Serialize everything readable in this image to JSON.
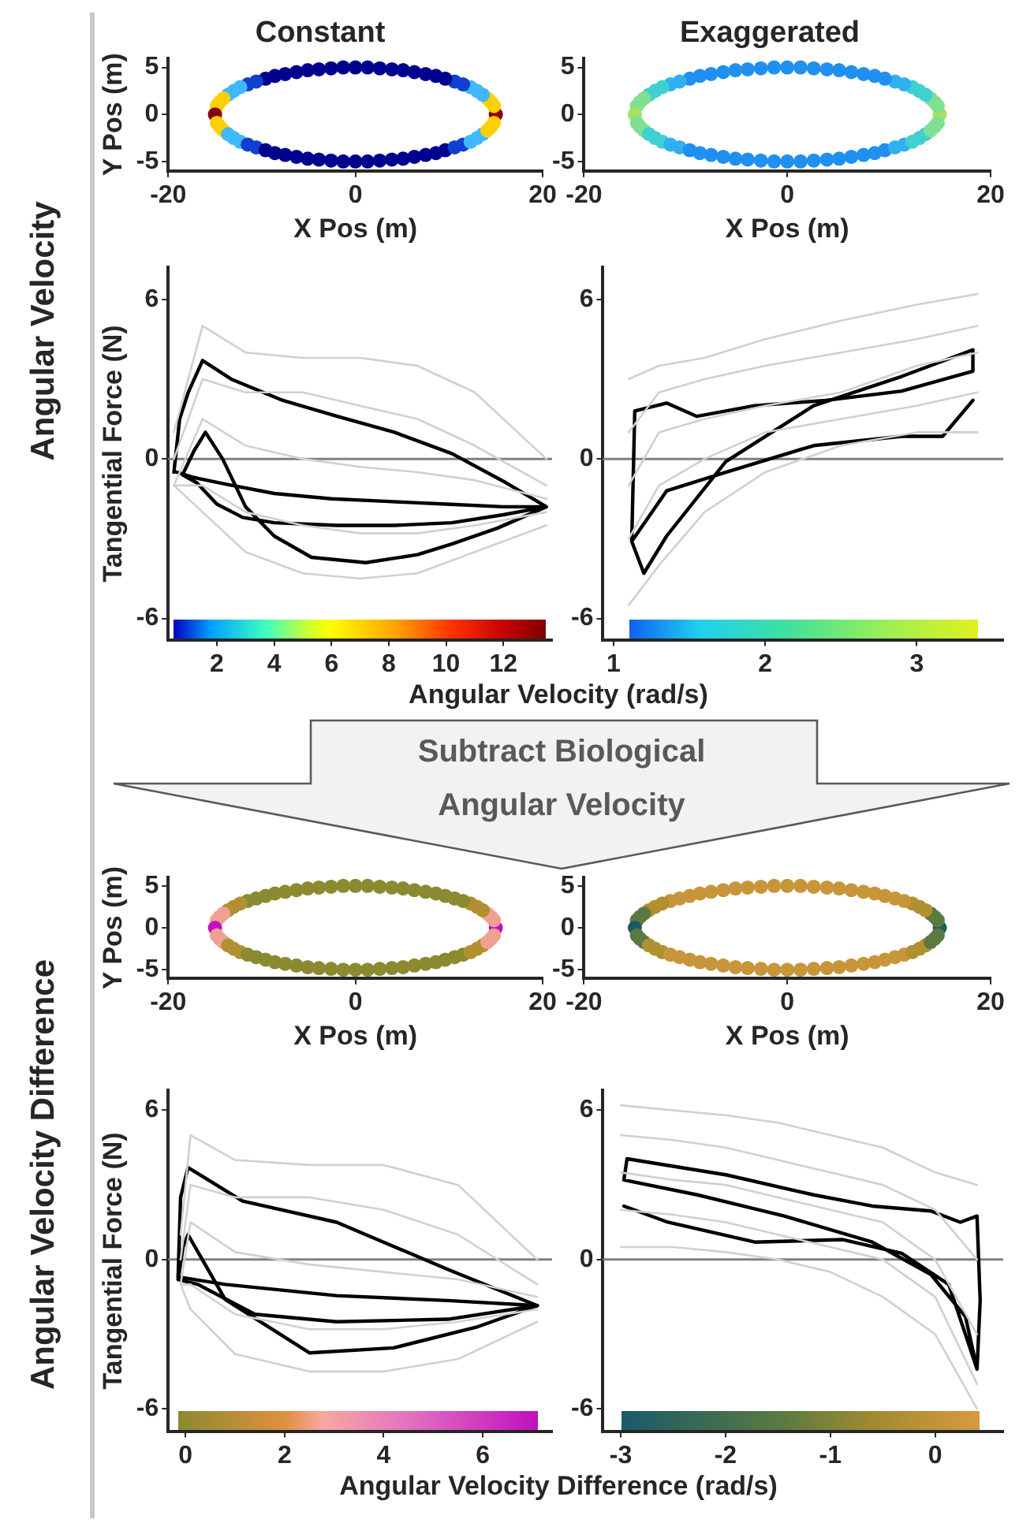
{
  "chart_data": [
    {
      "type": "scatter",
      "marker": "circle",
      "title": "Constant",
      "xlabel": "X Pos (m)",
      "ylabel": "Y Pos (m)",
      "annotations": [
        "Angular Velocity"
      ],
      "xlim": [
        -20,
        20
      ],
      "xticks": [
        -20,
        0,
        20
      ],
      "ylim": [
        -6,
        6
      ],
      "yticks": [
        -5,
        0,
        5
      ],
      "x": [
        15.0,
        14.8,
        14.5,
        14.1,
        13.6,
        13.0,
        12.3,
        11.5,
        10.6,
        9.6,
        8.6,
        7.5,
        6.3,
        5.1,
        3.9,
        2.6,
        1.3,
        0.0,
        -1.3,
        -2.6,
        -3.9,
        -5.1,
        -6.3,
        -7.5,
        -8.6,
        -9.6,
        -10.6,
        -11.5,
        -12.3,
        -13.0,
        -13.6,
        -14.1,
        -14.5,
        -14.8,
        -15.0,
        -14.8,
        -14.5,
        -14.1,
        -13.6,
        -13.0,
        -12.3,
        -11.5,
        -10.6,
        -9.6,
        -8.6,
        -7.5,
        -6.3,
        -5.1,
        -3.9,
        -2.6,
        -1.3,
        0.0,
        1.3,
        2.6,
        3.9,
        5.1,
        6.3,
        7.5,
        8.6,
        9.6,
        10.6,
        11.5,
        12.3,
        13.0,
        13.6,
        14.1,
        14.5,
        14.8
      ],
      "values": [
        0.0,
        0.9,
        1.3,
        1.7,
        2.1,
        2.5,
        2.9,
        3.2,
        3.5,
        3.8,
        4.1,
        4.3,
        4.5,
        4.7,
        4.8,
        4.9,
        5.0,
        5.0,
        5.0,
        4.9,
        4.8,
        4.7,
        4.5,
        4.3,
        4.1,
        3.8,
        3.5,
        3.2,
        2.9,
        2.5,
        2.1,
        1.7,
        1.3,
        0.9,
        0.0,
        -0.9,
        -1.3,
        -1.7,
        -2.1,
        -2.5,
        -2.9,
        -3.2,
        -3.5,
        -3.8,
        -4.1,
        -4.3,
        -4.5,
        -4.7,
        -4.8,
        -4.9,
        -5.0,
        -5.0,
        -5.0,
        -4.9,
        -4.8,
        -4.7,
        -4.5,
        -4.3,
        -4.1,
        -3.8,
        -3.5,
        -3.2,
        -2.9,
        -2.5,
        -2.1,
        -1.7,
        -1.3,
        -0.9
      ],
      "colors": [
        "#8b0000",
        "#ffd000",
        "#ffd000",
        "#ffd000",
        "#40b8ff",
        "#40b8ff",
        "#40b8ff",
        "#1040d0",
        "#1040d0",
        "#00008f",
        "#00008f",
        "#00008f",
        "#00008f",
        "#00008f",
        "#00008f",
        "#00008f",
        "#00008f",
        "#00008f",
        "#00008f",
        "#00008f",
        "#00008f",
        "#00008f",
        "#00008f",
        "#00008f",
        "#00008f",
        "#00008f",
        "#1040d0",
        "#1040d0",
        "#40b8ff",
        "#40b8ff",
        "#40b8ff",
        "#ffd000",
        "#ffd000",
        "#ffd000",
        "#8b0000",
        "#ffd000",
        "#ffd000",
        "#ffd000",
        "#40b8ff",
        "#40b8ff",
        "#40b8ff",
        "#1040d0",
        "#1040d0",
        "#00008f",
        "#00008f",
        "#00008f",
        "#00008f",
        "#00008f",
        "#00008f",
        "#00008f",
        "#00008f",
        "#00008f",
        "#00008f",
        "#00008f",
        "#00008f",
        "#00008f",
        "#00008f",
        "#00008f",
        "#00008f",
        "#00008f",
        "#1040d0",
        "#1040d0",
        "#40b8ff",
        "#40b8ff",
        "#40b8ff",
        "#ffd000",
        "#ffd000",
        "#ffd000"
      ]
    },
    {
      "type": "scatter",
      "marker": "circle",
      "title": "Exaggerated",
      "xlabel": "X Pos (m)",
      "xlim": [
        -20,
        20
      ],
      "xticks": [
        -20,
        0,
        20
      ],
      "ylim": [
        -6,
        6
      ],
      "yticks": [
        -5,
        0,
        5
      ],
      "x": [
        15.0,
        14.8,
        14.5,
        14.1,
        13.6,
        13.0,
        12.3,
        11.5,
        10.6,
        9.6,
        8.6,
        7.5,
        6.3,
        5.1,
        3.9,
        2.6,
        1.3,
        0.0,
        -1.3,
        -2.6,
        -3.9,
        -5.1,
        -6.3,
        -7.5,
        -8.6,
        -9.6,
        -10.6,
        -11.5,
        -12.3,
        -13.0,
        -13.6,
        -14.1,
        -14.5,
        -14.8,
        -15.0,
        -14.8,
        -14.5,
        -14.1,
        -13.6,
        -13.0,
        -12.3,
        -11.5,
        -10.6,
        -9.6,
        -8.6,
        -7.5,
        -6.3,
        -5.1,
        -3.9,
        -2.6,
        -1.3,
        0.0,
        1.3,
        2.6,
        3.9,
        5.1,
        6.3,
        7.5,
        8.6,
        9.6,
        10.6,
        11.5,
        12.3,
        13.0,
        13.6,
        14.1,
        14.5,
        14.8
      ],
      "values": [
        0.0,
        0.9,
        1.3,
        1.7,
        2.1,
        2.5,
        2.9,
        3.2,
        3.5,
        3.8,
        4.1,
        4.3,
        4.5,
        4.7,
        4.8,
        4.9,
        5.0,
        5.0,
        5.0,
        4.9,
        4.8,
        4.7,
        4.5,
        4.3,
        4.1,
        3.8,
        3.5,
        3.2,
        2.9,
        2.5,
        2.1,
        1.7,
        1.3,
        0.9,
        0.0,
        -0.9,
        -1.3,
        -1.7,
        -2.1,
        -2.5,
        -2.9,
        -3.2,
        -3.5,
        -3.8,
        -4.1,
        -4.3,
        -4.5,
        -4.7,
        -4.8,
        -4.9,
        -5.0,
        -5.0,
        -5.0,
        -4.9,
        -4.8,
        -4.7,
        -4.5,
        -4.3,
        -4.1,
        -3.8,
        -3.5,
        -3.2,
        -2.9,
        -2.5,
        -2.1,
        -1.7,
        -1.3,
        -0.9
      ],
      "colors": [
        "#a8e060",
        "#80e090",
        "#80e090",
        "#80e090",
        "#40d0d0",
        "#40d0d0",
        "#40d0d0",
        "#30b0f0",
        "#30b0f0",
        "#2090f0",
        "#2090f0",
        "#2090f0",
        "#2090f0",
        "#2090f0",
        "#2090f0",
        "#2090f0",
        "#2090f0",
        "#2090f0",
        "#2090f0",
        "#2090f0",
        "#2090f0",
        "#2090f0",
        "#2090f0",
        "#2090f0",
        "#2090f0",
        "#2090f0",
        "#30b0f0",
        "#30b0f0",
        "#40d0d0",
        "#40d0d0",
        "#40d0d0",
        "#80e090",
        "#80e090",
        "#80e090",
        "#a8e060",
        "#80e090",
        "#80e090",
        "#80e090",
        "#40d0d0",
        "#40d0d0",
        "#40d0d0",
        "#30b0f0",
        "#30b0f0",
        "#2090f0",
        "#2090f0",
        "#2090f0",
        "#2090f0",
        "#2090f0",
        "#2090f0",
        "#2090f0",
        "#2090f0",
        "#2090f0",
        "#2090f0",
        "#2090f0",
        "#2090f0",
        "#2090f0",
        "#2090f0",
        "#2090f0",
        "#2090f0",
        "#2090f0",
        "#30b0f0",
        "#30b0f0",
        "#40d0d0",
        "#40d0d0",
        "#40d0d0",
        "#80e090",
        "#80e090",
        "#80e090"
      ]
    },
    {
      "type": "line",
      "xlabel": "Angular Velocity (rad/s)",
      "ylabel": "Tangential Force (N)",
      "xlim": [
        0.3,
        13.7
      ],
      "xticks": [
        2,
        4,
        6,
        8,
        10,
        12
      ],
      "ylim": [
        -6.8,
        7.2
      ],
      "yticks": [
        -6,
        0,
        6
      ],
      "ref_lines": [
        {
          "axis": "y",
          "value": 0,
          "color": "#808080"
        }
      ],
      "series": [
        {
          "color": "#d0d0d0",
          "x": [
            0.5,
            1.5,
            3,
            5,
            7,
            9,
            11,
            13.5
          ],
          "values": [
            1,
            5,
            4,
            3.8,
            3.8,
            3.5,
            2.5,
            0
          ]
        },
        {
          "color": "#d0d0d0",
          "x": [
            0.5,
            1.5,
            3,
            5,
            7,
            9,
            11,
            13.5
          ],
          "values": [
            0,
            3,
            2.5,
            2.5,
            2,
            1.5,
            0.5,
            -1
          ]
        },
        {
          "color": "#d0d0d0",
          "x": [
            0.5,
            1.5,
            3,
            5,
            7,
            9,
            11,
            13.5
          ],
          "values": [
            -1,
            1.5,
            0.5,
            0,
            -0.3,
            -0.5,
            -0.8,
            -1.5
          ]
        },
        {
          "color": "#d0d0d0",
          "x": [
            0.5,
            1.5,
            3,
            5,
            7,
            9,
            11,
            13.5
          ],
          "values": [
            -1,
            -1,
            -2,
            -2.5,
            -2.8,
            -2.8,
            -2.5,
            -2
          ]
        },
        {
          "color": "#d0d0d0",
          "x": [
            0.5,
            1.5,
            3,
            5,
            7,
            9,
            11,
            13.5
          ],
          "values": [
            -1,
            -2,
            -3.5,
            -4.3,
            -4.5,
            -4.3,
            -3.5,
            -2.5
          ]
        },
        {
          "color": "#000000",
          "x": [
            0.5,
            0.7,
            1.0,
            1.5,
            2.5,
            4.3,
            6.2,
            8.2,
            10.2,
            12.1,
            13.5,
            12.0,
            10.2,
            8.2,
            6.2,
            4.0,
            2.9,
            2.0,
            1.3,
            0.8,
            1.2,
            1.6,
            2.2,
            3.0,
            4.0,
            5.3,
            7.2,
            9.0,
            10.2,
            11.8,
            13.5,
            12.0,
            10.0,
            8.0,
            6.0,
            4.0,
            2.3,
            1.2,
            0.6
          ],
          "values": [
            -0.5,
            1.5,
            2.5,
            3.7,
            3.0,
            2.2,
            1.6,
            1.0,
            0.2,
            -0.9,
            -1.8,
            -2.1,
            -2.4,
            -2.5,
            -2.5,
            -2.4,
            -2.2,
            -1.7,
            -0.9,
            -0.6,
            0.3,
            1.0,
            0.0,
            -1.8,
            -2.9,
            -3.7,
            -3.9,
            -3.6,
            -3.2,
            -2.6,
            -1.8,
            -1.8,
            -1.7,
            -1.6,
            -1.5,
            -1.3,
            -0.95,
            -0.7,
            -0.5
          ]
        }
      ]
    },
    {
      "type": "line",
      "xlim": [
        0.93,
        3.57
      ],
      "xticks": [
        1,
        2,
        3
      ],
      "ylim": [
        -6.8,
        7.2
      ],
      "yticks": [
        -6,
        0,
        6
      ],
      "ref_lines": [
        {
          "axis": "y",
          "value": 0,
          "color": "#808080"
        }
      ],
      "series": [
        {
          "color": "#d0d0d0",
          "x": [
            1.1,
            1.3,
            1.6,
            2.0,
            2.5,
            3.0,
            3.4
          ],
          "values": [
            3,
            3.5,
            3.8,
            4.5,
            5.2,
            5.8,
            6.2
          ]
        },
        {
          "color": "#d0d0d0",
          "x": [
            1.1,
            1.3,
            1.6,
            2.0,
            2.5,
            3.0,
            3.4
          ],
          "values": [
            1,
            2.5,
            3,
            3.5,
            4,
            4.5,
            5
          ]
        },
        {
          "color": "#d0d0d0",
          "x": [
            1.1,
            1.3,
            1.6,
            2.0,
            2.5,
            3.0,
            3.4
          ],
          "values": [
            -1,
            1,
            1.5,
            2,
            2.5,
            3.5,
            4
          ]
        },
        {
          "color": "#d0d0d0",
          "x": [
            1.1,
            1.3,
            1.6,
            2.0,
            2.5,
            3.0,
            3.4
          ],
          "values": [
            -3,
            -1,
            0,
            1,
            1.5,
            2,
            2.5
          ]
        },
        {
          "color": "#d0d0d0",
          "x": [
            1.1,
            1.3,
            1.6,
            2.0,
            2.5,
            3.0,
            3.4
          ],
          "values": [
            -5.5,
            -4,
            -2,
            -0.5,
            0.5,
            1,
            1
          ]
        },
        {
          "color": "#000000",
          "x": [
            3.37,
            3.17,
            2.9,
            2.32,
            1.74,
            1.35,
            1.12,
            1.14,
            1.35,
            1.55,
            1.93,
            2.4,
            2.9,
            3.37,
            3.37,
            2.9,
            2.32,
            1.74,
            1.35,
            1.2,
            1.12
          ],
          "values": [
            2.2,
            0.85,
            0.85,
            0.5,
            -0.5,
            -1.2,
            -3.1,
            1.8,
            2.1,
            1.6,
            2.0,
            2.2,
            2.55,
            3.3,
            4.1,
            3.1,
            2.0,
            -0.1,
            -2.9,
            -4.3,
            -3.1
          ]
        }
      ]
    },
    {
      "type": "scatter",
      "marker": "circle",
      "ylabel": "Y Pos (m)",
      "xlabel": "X Pos (m)",
      "annotations": [
        "Angular Velocity Difference",
        "Subtract Biological Angular Velocity"
      ],
      "xlim": [
        -20,
        20
      ],
      "xticks": [
        -20,
        0,
        20
      ],
      "ylim": [
        -6,
        6
      ],
      "yticks": [
        -5,
        0,
        5
      ],
      "x": [
        15.0,
        14.8,
        14.5,
        14.1,
        13.6,
        13.0,
        12.3,
        11.5,
        10.6,
        9.6,
        8.6,
        7.5,
        6.3,
        5.1,
        3.9,
        2.6,
        1.3,
        0.0,
        -1.3,
        -2.6,
        -3.9,
        -5.1,
        -6.3,
        -7.5,
        -8.6,
        -9.6,
        -10.6,
        -11.5,
        -12.3,
        -13.0,
        -13.6,
        -14.1,
        -14.5,
        -14.8,
        -15.0,
        -14.8,
        -14.5,
        -14.1,
        -13.6,
        -13.0,
        -12.3,
        -11.5,
        -10.6,
        -9.6,
        -8.6,
        -7.5,
        -6.3,
        -5.1,
        -3.9,
        -2.6,
        -1.3,
        0.0,
        1.3,
        2.6,
        3.9,
        5.1,
        6.3,
        7.5,
        8.6,
        9.6,
        10.6,
        11.5,
        12.3,
        13.0,
        13.6,
        14.1,
        14.5,
        14.8
      ],
      "values": [
        0.0,
        0.9,
        1.3,
        1.7,
        2.1,
        2.5,
        2.9,
        3.2,
        3.5,
        3.8,
        4.1,
        4.3,
        4.5,
        4.7,
        4.8,
        4.9,
        5.0,
        5.0,
        5.0,
        4.9,
        4.8,
        4.7,
        4.5,
        4.3,
        4.1,
        3.8,
        3.5,
        3.2,
        2.9,
        2.5,
        2.1,
        1.7,
        1.3,
        0.9,
        0.0,
        -0.9,
        -1.3,
        -1.7,
        -2.1,
        -2.5,
        -2.9,
        -3.2,
        -3.5,
        -3.8,
        -4.1,
        -4.3,
        -4.5,
        -4.7,
        -4.8,
        -4.9,
        -5.0,
        -5.0,
        -5.0,
        -4.9,
        -4.8,
        -4.7,
        -4.5,
        -4.3,
        -4.1,
        -3.8,
        -3.5,
        -3.2,
        -2.9,
        -2.5,
        -2.1,
        -1.7,
        -1.3,
        -0.9
      ],
      "colors": [
        "#c010c0",
        "#f0a090",
        "#f0a090",
        "#f0a090",
        "#b09030",
        "#b09030",
        "#b09030",
        "#8c8a30",
        "#8c8a30",
        "#8c8a30",
        "#8c8a30",
        "#8c8a30",
        "#8c8a30",
        "#8c8a30",
        "#8c8a30",
        "#8c8a30",
        "#8c8a30",
        "#8c8a30",
        "#8c8a30",
        "#8c8a30",
        "#8c8a30",
        "#8c8a30",
        "#8c8a30",
        "#8c8a30",
        "#8c8a30",
        "#8c8a30",
        "#8c8a30",
        "#8c8a30",
        "#b09030",
        "#b09030",
        "#b09030",
        "#f0a090",
        "#f0a090",
        "#f0a090",
        "#c010c0",
        "#f0a090",
        "#f0a090",
        "#f0a090",
        "#b09030",
        "#b09030",
        "#b09030",
        "#8c8a30",
        "#8c8a30",
        "#8c8a30",
        "#8c8a30",
        "#8c8a30",
        "#8c8a30",
        "#8c8a30",
        "#8c8a30",
        "#8c8a30",
        "#8c8a30",
        "#8c8a30",
        "#8c8a30",
        "#8c8a30",
        "#8c8a30",
        "#8c8a30",
        "#8c8a30",
        "#8c8a30",
        "#8c8a30",
        "#8c8a30",
        "#8c8a30",
        "#8c8a30",
        "#b09030",
        "#b09030",
        "#b09030",
        "#f0a090",
        "#f0a090",
        "#f0a090"
      ]
    },
    {
      "type": "scatter",
      "marker": "circle",
      "xlabel": "X Pos (m)",
      "xlim": [
        -20,
        20
      ],
      "xticks": [
        -20,
        0,
        20
      ],
      "ylim": [
        -6,
        6
      ],
      "yticks": [
        -5,
        0,
        5
      ],
      "x": [
        15.0,
        14.8,
        14.5,
        14.1,
        13.6,
        13.0,
        12.3,
        11.5,
        10.6,
        9.6,
        8.6,
        7.5,
        6.3,
        5.1,
        3.9,
        2.6,
        1.3,
        0.0,
        -1.3,
        -2.6,
        -3.9,
        -5.1,
        -6.3,
        -7.5,
        -8.6,
        -9.6,
        -10.6,
        -11.5,
        -12.3,
        -13.0,
        -13.6,
        -14.1,
        -14.5,
        -14.8,
        -15.0,
        -14.8,
        -14.5,
        -14.1,
        -13.6,
        -13.0,
        -12.3,
        -11.5,
        -10.6,
        -9.6,
        -8.6,
        -7.5,
        -6.3,
        -5.1,
        -3.9,
        -2.6,
        -1.3,
        0.0,
        1.3,
        2.6,
        3.9,
        5.1,
        6.3,
        7.5,
        8.6,
        9.6,
        10.6,
        11.5,
        12.3,
        13.0,
        13.6,
        14.1,
        14.5,
        14.8
      ],
      "values": [
        0.0,
        0.9,
        1.3,
        1.7,
        2.1,
        2.5,
        2.9,
        3.2,
        3.5,
        3.8,
        4.1,
        4.3,
        4.5,
        4.7,
        4.8,
        4.9,
        5.0,
        5.0,
        5.0,
        4.9,
        4.8,
        4.7,
        4.5,
        4.3,
        4.1,
        3.8,
        3.5,
        3.2,
        2.9,
        2.5,
        2.1,
        1.7,
        1.3,
        0.9,
        0.0,
        -0.9,
        -1.3,
        -1.7,
        -2.1,
        -2.5,
        -2.9,
        -3.2,
        -3.5,
        -3.8,
        -4.1,
        -4.3,
        -4.5,
        -4.7,
        -4.8,
        -4.9,
        -5.0,
        -5.0,
        -5.0,
        -4.9,
        -4.8,
        -4.7,
        -4.5,
        -4.3,
        -4.1,
        -3.8,
        -3.5,
        -3.2,
        -2.9,
        -2.5,
        -2.1,
        -1.7,
        -1.3,
        -0.9
      ],
      "colors": [
        "#1a5a6a",
        "#5a7a40",
        "#5a7a40",
        "#5a7a40",
        "#b09030",
        "#b09030",
        "#b09030",
        "#c8953a",
        "#c8953a",
        "#c8953a",
        "#c8953a",
        "#c8953a",
        "#c8953a",
        "#c8953a",
        "#c8953a",
        "#c8953a",
        "#c8953a",
        "#c8953a",
        "#c8953a",
        "#c8953a",
        "#c8953a",
        "#c8953a",
        "#c8953a",
        "#c8953a",
        "#c8953a",
        "#c8953a",
        "#c8953a",
        "#c8953a",
        "#b09030",
        "#b09030",
        "#b09030",
        "#5a7a40",
        "#5a7a40",
        "#5a7a40",
        "#1a5a6a",
        "#5a7a40",
        "#5a7a40",
        "#5a7a40",
        "#b09030",
        "#b09030",
        "#b09030",
        "#c8953a",
        "#c8953a",
        "#c8953a",
        "#c8953a",
        "#c8953a",
        "#c8953a",
        "#c8953a",
        "#c8953a",
        "#c8953a",
        "#c8953a",
        "#c8953a",
        "#c8953a",
        "#c8953a",
        "#c8953a",
        "#c8953a",
        "#c8953a",
        "#c8953a",
        "#c8953a",
        "#c8953a",
        "#c8953a",
        "#c8953a",
        "#b09030",
        "#b09030",
        "#b09030",
        "#5a7a40",
        "#5a7a40",
        "#5a7a40"
      ]
    },
    {
      "type": "line",
      "xlabel": "Angular Velocity Difference (rad/s)",
      "ylabel": "Tangential Force (N)",
      "xlim": [
        -0.35,
        7.4
      ],
      "xticks": [
        0,
        2,
        4,
        6
      ],
      "ylim": [
        -6.9,
        6.8
      ],
      "yticks": [
        -6,
        0,
        6
      ],
      "ref_lines": [
        {
          "axis": "y",
          "value": 0,
          "color": "#808080"
        }
      ],
      "series": [
        {
          "color": "#d0d0d0",
          "x": [
            -0.1,
            0.1,
            1,
            2.5,
            4,
            5.5,
            7.1
          ],
          "values": [
            1,
            5,
            4,
            3.8,
            3.8,
            3,
            0
          ]
        },
        {
          "color": "#d0d0d0",
          "x": [
            -0.1,
            0.1,
            1,
            2.5,
            4,
            5.5,
            7.1
          ],
          "values": [
            0,
            3,
            2.5,
            2.5,
            2,
            1,
            -1
          ]
        },
        {
          "color": "#d0d0d0",
          "x": [
            -0.1,
            0.1,
            1,
            2.5,
            4,
            5.5,
            7.1
          ],
          "values": [
            -1,
            1.5,
            0.3,
            -0.2,
            -0.5,
            -0.8,
            -1.5
          ]
        },
        {
          "color": "#d0d0d0",
          "x": [
            -0.1,
            0.1,
            1,
            2.5,
            4,
            5.5,
            7.1
          ],
          "values": [
            -1,
            -1,
            -2.2,
            -2.8,
            -2.8,
            -2.5,
            -2
          ]
        },
        {
          "color": "#d0d0d0",
          "x": [
            -0.1,
            0.1,
            1,
            2.5,
            4,
            5.5,
            7.1
          ],
          "values": [
            -1,
            -2,
            -3.8,
            -4.5,
            -4.5,
            -4,
            -2.5
          ]
        },
        {
          "color": "#000000",
          "x": [
            -0.15,
            -0.1,
            0.05,
            1.15,
            3.05,
            5.3,
            7.1
          ],
          "values": [
            -0.7,
            2.5,
            3.7,
            2.35,
            1.5,
            -0.4,
            -1.85
          ]
        },
        {
          "color": "#000000",
          "x": [
            -0.15,
            0.25,
            1.4,
            3.05,
            5.3,
            7.1
          ],
          "values": [
            -0.8,
            -1.0,
            -2.2,
            -2.5,
            -2.4,
            -1.85
          ]
        },
        {
          "color": "#000000",
          "x": [
            -0.15,
            -0.05,
            0.05,
            0.8,
            2.5,
            4.2,
            5.9,
            7.1
          ],
          "values": [
            -0.8,
            0.5,
            1.0,
            -1.6,
            -3.75,
            -3.55,
            -2.7,
            -1.85
          ]
        },
        {
          "color": "#000000",
          "x": [
            -0.15,
            0.8,
            3.05,
            5.3,
            7.1
          ],
          "values": [
            -0.7,
            -1.0,
            -1.45,
            -1.65,
            -1.85
          ]
        }
      ]
    },
    {
      "type": "line",
      "xlim": [
        -3.17,
        0.65
      ],
      "xticks": [
        -3,
        -2,
        -1,
        0
      ],
      "ylim": [
        -6.9,
        6.8
      ],
      "yticks": [
        -6,
        0,
        6
      ],
      "ref_lines": [
        {
          "axis": "y",
          "value": 0,
          "color": "#808080"
        }
      ],
      "series": [
        {
          "color": "#d0d0d0",
          "x": [
            -3,
            -2.5,
            -2,
            -1.5,
            -1,
            -0.5,
            0,
            0.4
          ],
          "values": [
            6.2,
            6,
            5.8,
            5.5,
            5,
            4.5,
            3.5,
            3
          ]
        },
        {
          "color": "#d0d0d0",
          "x": [
            -3,
            -2.5,
            -2,
            -1.5,
            -1,
            -0.5,
            0,
            0.4
          ],
          "values": [
            5,
            4.8,
            4.5,
            4,
            3.5,
            3,
            2,
            0
          ]
        },
        {
          "color": "#d0d0d0",
          "x": [
            -3,
            -2.5,
            -2,
            -1.5,
            -1,
            -0.5,
            0,
            0.4
          ],
          "values": [
            3.5,
            3.2,
            3,
            2.5,
            2,
            1.5,
            0,
            -3
          ]
        },
        {
          "color": "#d0d0d0",
          "x": [
            -3,
            -2.5,
            -2,
            -1.5,
            -1,
            -0.5,
            0,
            0.4
          ],
          "values": [
            2,
            1.8,
            1.5,
            1,
            0.5,
            0,
            -1.5,
            -5
          ]
        },
        {
          "color": "#d0d0d0",
          "x": [
            -3,
            -2.5,
            -2,
            -1.5,
            -1,
            -0.5,
            0,
            0.4
          ],
          "values": [
            0.5,
            0.5,
            0.3,
            0,
            -0.5,
            -1.5,
            -3,
            -6
          ]
        },
        {
          "color": "#000000",
          "x": [
            -2.97,
            -2.55,
            -1.72,
            -0.88,
            -0.32,
            0.13,
            0.4,
            0.43,
            0.4,
            0.24,
            -0.04,
            -0.6,
            -1.16,
            -1.99,
            -2.94,
            -2.97,
            -2.27,
            -1.44,
            -0.6,
            -0.04,
            0.29,
            0.4
          ],
          "values": [
            2.15,
            1.5,
            0.7,
            0.8,
            0.25,
            -1.0,
            -4.4,
            -1.65,
            1.75,
            1.5,
            1.95,
            2.15,
            2.6,
            3.4,
            4.05,
            3.2,
            2.6,
            1.75,
            0.7,
            -0.6,
            -2.3,
            -4.4
          ]
        }
      ]
    }
  ]
}
